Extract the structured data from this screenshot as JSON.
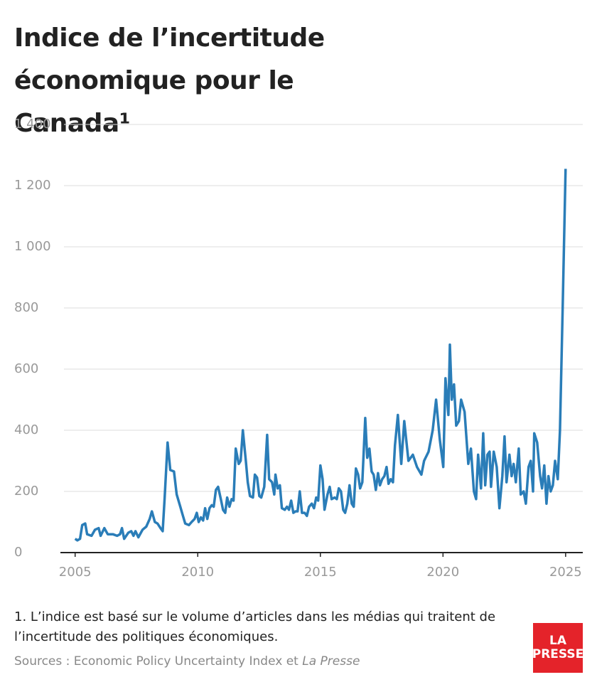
{
  "chart_data": {
    "type": "line",
    "title": "Indice de l’incertitude économique pour le Canada¹",
    "note": "1. L’indice est basé sur le volume d’articles dans les médias qui traitent de l’incertitude des politiques économiques.",
    "sources": {
      "text": "Sources : Economic Policy Uncertainty Index et",
      "publication": "La Presse"
    },
    "logo": [
      "LA",
      "PRESSE"
    ],
    "xlim": [
      2004.4,
      2025.7
    ],
    "xticks": [
      2005,
      2010,
      2015,
      2020,
      2025
    ],
    "ylim": [
      0,
      1400
    ],
    "yticks": [
      0,
      200,
      400,
      600,
      800,
      {
        "value": 1000,
        "label": "1 000"
      },
      {
        "value": 1200,
        "label": "1 200"
      },
      {
        "value": 1400,
        "label": "1 400"
      }
    ],
    "grid": true,
    "series": [
      {
        "name": "Indice",
        "color": "#2a7db8",
        "x": [
          2005.0,
          2005.09,
          2005.2,
          2005.29,
          2005.41,
          2005.49,
          2005.67,
          2005.81,
          2005.96,
          2006.04,
          2006.19,
          2006.33,
          2006.54,
          2006.71,
          2006.83,
          2006.91,
          2007.0,
          2007.17,
          2007.29,
          2007.38,
          2007.46,
          2007.58,
          2007.75,
          2007.9,
          2008.04,
          2008.13,
          2008.25,
          2008.36,
          2008.48,
          2008.57,
          2008.65,
          2008.77,
          2008.88,
          2009.03,
          2009.14,
          2009.29,
          2009.38,
          2009.49,
          2009.64,
          2009.75,
          2009.87,
          2009.96,
          2010.04,
          2010.13,
          2010.22,
          2010.3,
          2010.39,
          2010.48,
          2010.57,
          2010.65,
          2010.74,
          2010.83,
          2010.94,
          2011.03,
          2011.12,
          2011.2,
          2011.29,
          2011.38,
          2011.46,
          2011.55,
          2011.67,
          2011.75,
          2011.84,
          2011.96,
          2012.04,
          2012.13,
          2012.25,
          2012.33,
          2012.42,
          2012.51,
          2012.59,
          2012.71,
          2012.83,
          2012.91,
          2013.03,
          2013.12,
          2013.17,
          2013.26,
          2013.35,
          2013.43,
          2013.55,
          2013.64,
          2013.72,
          2013.81,
          2013.9,
          2013.99,
          2014.07,
          2014.16,
          2014.25,
          2014.36,
          2014.45,
          2014.54,
          2014.65,
          2014.74,
          2014.83,
          2014.91,
          2015.0,
          2015.09,
          2015.17,
          2015.29,
          2015.38,
          2015.46,
          2015.58,
          2015.67,
          2015.75,
          2015.84,
          2015.93,
          2016.01,
          2016.1,
          2016.19,
          2016.28,
          2016.36,
          2016.45,
          2016.54,
          2016.62,
          2016.71,
          2016.83,
          2016.91,
          2017.0,
          2017.09,
          2017.17,
          2017.26,
          2017.35,
          2017.43,
          2017.52,
          2017.61,
          2017.7,
          2017.78,
          2017.87,
          2017.96,
          2018.04,
          2018.16,
          2018.3,
          2018.42,
          2018.59,
          2018.77,
          2018.94,
          2019.12,
          2019.23,
          2019.41,
          2019.58,
          2019.72,
          2019.87,
          2020.01,
          2020.1,
          2020.22,
          2020.28,
          2020.36,
          2020.45,
          2020.54,
          2020.65,
          2020.74,
          2020.88,
          2021.03,
          2021.14,
          2021.26,
          2021.35,
          2021.43,
          2021.55,
          2021.64,
          2021.72,
          2021.81,
          2021.9,
          2021.96,
          2022.07,
          2022.19,
          2022.3,
          2022.42,
          2022.51,
          2022.59,
          2022.71,
          2022.8,
          2022.88,
          2022.97,
          2023.09,
          2023.17,
          2023.29,
          2023.38,
          2023.49,
          2023.58,
          2023.67,
          2023.72,
          2023.84,
          2023.96,
          2024.04,
          2024.13,
          2024.22,
          2024.3,
          2024.39,
          2024.48,
          2024.57,
          2024.68,
          2024.77,
          2024.88,
          2025.0
        ],
        "values": [
          45,
          40,
          45,
          90,
          95,
          60,
          55,
          75,
          80,
          55,
          80,
          60,
          60,
          55,
          60,
          80,
          45,
          65,
          70,
          55,
          70,
          50,
          75,
          85,
          110,
          135,
          100,
          95,
          80,
          70,
          180,
          360,
          270,
          265,
          190,
          150,
          125,
          95,
          90,
          100,
          110,
          130,
          100,
          115,
          105,
          145,
          110,
          145,
          155,
          150,
          205,
          215,
          175,
          140,
          130,
          180,
          150,
          175,
          170,
          340,
          290,
          300,
          400,
          300,
          230,
          185,
          180,
          255,
          245,
          185,
          180,
          215,
          385,
          240,
          230,
          190,
          255,
          210,
          220,
          145,
          140,
          150,
          140,
          170,
          130,
          135,
          135,
          200,
          130,
          130,
          120,
          150,
          160,
          145,
          180,
          170,
          285,
          240,
          140,
          190,
          215,
          175,
          180,
          175,
          210,
          200,
          140,
          130,
          160,
          220,
          160,
          150,
          275,
          255,
          210,
          230,
          440,
          310,
          340,
          265,
          255,
          205,
          260,
          220,
          240,
          250,
          280,
          225,
          240,
          230,
          350,
          450,
          290,
          430,
          300,
          320,
          280,
          255,
          300,
          330,
          400,
          500,
          370,
          280,
          570,
          450,
          680,
          500,
          550,
          415,
          430,
          500,
          460,
          290,
          340,
          200,
          175,
          320,
          210,
          390,
          220,
          320,
          330,
          215,
          330,
          280,
          145,
          250,
          380,
          230,
          320,
          250,
          290,
          230,
          340,
          190,
          200,
          160,
          280,
          300,
          200,
          390,
          360,
          250,
          210,
          285,
          160,
          250,
          200,
          220,
          300,
          240,
          400,
          800,
          1255
        ]
      }
    ]
  }
}
